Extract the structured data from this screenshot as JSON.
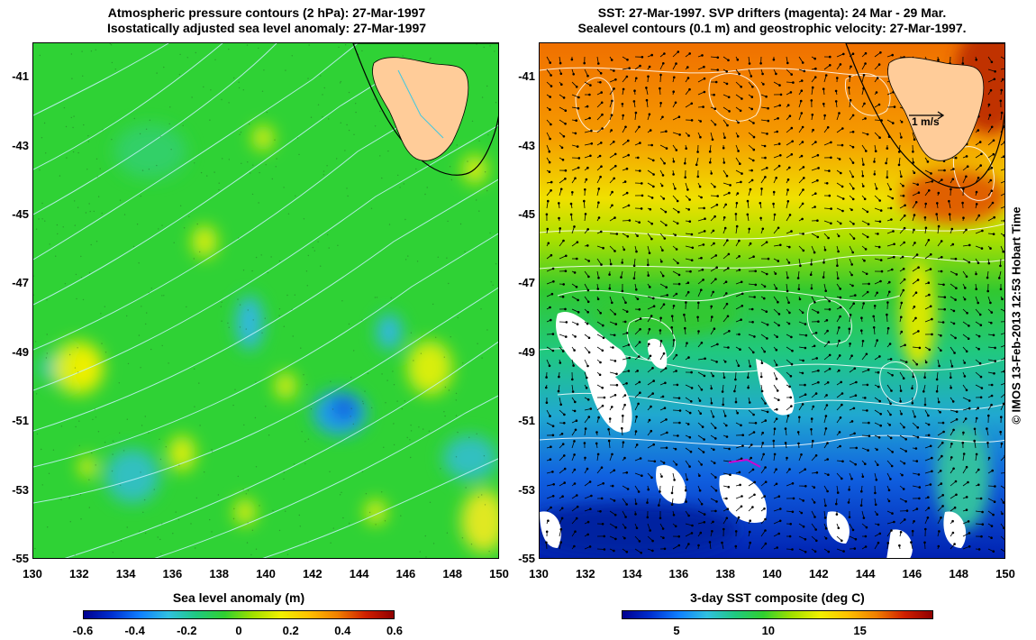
{
  "left_panel": {
    "title_line1": "Atmospheric pressure contours (2 hPa): 27-Mar-1997",
    "title_line2": "Isostatically adjusted sea level anomaly: 27-Mar-1997",
    "colorbar_title": "Sea level anomaly (m)",
    "colorbar_ticks": [
      "-0.6",
      "-0.4",
      "-0.2",
      "0",
      "0.2",
      "0.4",
      "0.6"
    ],
    "colorbar_range": [
      -0.6,
      0.6
    ],
    "colors": {
      "background": "#30d030",
      "contour": "#c0f0ff",
      "land": "#ffcc99"
    }
  },
  "right_panel": {
    "title_line1": "SST: 27-Mar-1997. SVP drifters (magenta): 24 Mar - 29 Mar.",
    "title_line2": "Sealevel contours (0.1 m) and geostrophic velocity: 27-Mar-1997.",
    "colorbar_title": "3-day SST composite (deg C)",
    "colorbar_ticks": [
      "5",
      "10",
      "15"
    ],
    "colorbar_tick_values": [
      5,
      10,
      15
    ],
    "colorbar_range": [
      2,
      19
    ],
    "velocity_scale_label": "1 m/s",
    "colors": {
      "warm": "#f08000",
      "cool": "#0030d0",
      "contour": "#ffffff",
      "land": "#ffcc99"
    }
  },
  "axes": {
    "lon_ticks": [
      "130",
      "132",
      "134",
      "136",
      "138",
      "140",
      "142",
      "144",
      "146",
      "148",
      "150"
    ],
    "lat_ticks": [
      "-41",
      "-43",
      "-45",
      "-47",
      "-49",
      "-51",
      "-53",
      "-55"
    ],
    "lon_range": [
      130,
      150
    ],
    "lat_range": [
      -55,
      -40
    ]
  },
  "credit": "© IMOS 13-Feb-2013 12:53 Hobart Time"
}
